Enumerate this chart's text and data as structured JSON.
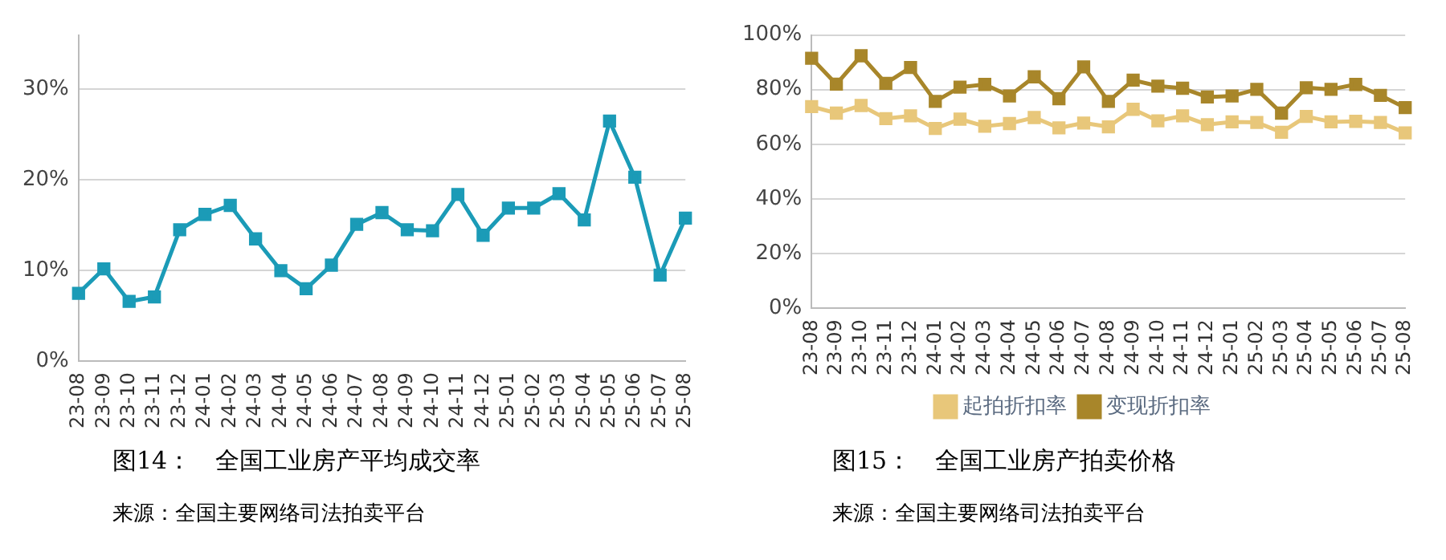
{
  "chart_data": [
    {
      "type": "line",
      "title": "图14：　全国工业房产平均成交率",
      "annotations": [
        "来源：全国主要网络司法拍卖平台"
      ],
      "categories": [
        "23-08",
        "23-09",
        "23-10",
        "23-11",
        "23-12",
        "24-01",
        "24-02",
        "24-03",
        "24-04",
        "24-05",
        "24-06",
        "24-07",
        "24-08",
        "24-09",
        "24-10",
        "24-11",
        "24-12",
        "25-01",
        "25-02",
        "25-03",
        "25-04",
        "25-05",
        "25-06",
        "25-07",
        "25-08"
      ],
      "series": [
        {
          "color": "#1b9bb7",
          "values": [
            7.5,
            10.2,
            6.6,
            7.1,
            14.5,
            16.2,
            17.2,
            13.5,
            10.0,
            8.0,
            10.6,
            15.1,
            16.4,
            14.5,
            14.4,
            18.4,
            13.9,
            16.9,
            16.9,
            18.5,
            15.6,
            26.5,
            20.3,
            9.5,
            15.8
          ]
        }
      ],
      "ylim": [
        0,
        36
      ],
      "yticks": [
        {
          "value": 0,
          "label": "0%"
        },
        {
          "value": 10,
          "label": "10%"
        },
        {
          "value": 20,
          "label": "20%"
        },
        {
          "value": 30,
          "label": "30%"
        }
      ],
      "grid": "y",
      "legend": false,
      "marker": "square",
      "line_style": "solid"
    },
    {
      "type": "line",
      "title": "图15：　全国工业房产拍卖价格",
      "annotations": [
        "来源：全国主要网络司法拍卖平台"
      ],
      "categories": [
        "23-08",
        "23-09",
        "23-10",
        "23-11",
        "23-12",
        "24-01",
        "24-02",
        "24-03",
        "24-04",
        "24-05",
        "24-06",
        "24-07",
        "24-08",
        "24-09",
        "24-10",
        "24-11",
        "24-12",
        "25-01",
        "25-02",
        "25-03",
        "25-04",
        "25-05",
        "25-06",
        "25-07",
        "25-08"
      ],
      "series": [
        {
          "name": "起拍折扣率",
          "color": "#e8c77a",
          "values": [
            73.8,
            71.4,
            74.2,
            69.4,
            70.4,
            65.8,
            69.2,
            66.6,
            67.6,
            69.8,
            66.0,
            67.8,
            66.4,
            72.8,
            68.6,
            70.4,
            67.2,
            68.2,
            68.0,
            64.4,
            70.2,
            68.2,
            68.4,
            68.0,
            64.2
          ]
        },
        {
          "name": "变现折扣率",
          "color": "#a8862a",
          "values": [
            91.5,
            82.0,
            92.4,
            82.3,
            88.1,
            75.7,
            80.9,
            81.9,
            77.7,
            84.7,
            76.7,
            88.3,
            75.7,
            83.5,
            81.3,
            80.5,
            77.3,
            77.7,
            80.1,
            71.4,
            80.7,
            80.1,
            81.9,
            77.9,
            73.4
          ]
        }
      ],
      "ylim": [
        0,
        100
      ],
      "yticks": [
        {
          "value": 0,
          "label": "0%"
        },
        {
          "value": 20,
          "label": "20%"
        },
        {
          "value": 40,
          "label": "40%"
        },
        {
          "value": 60,
          "label": "60%"
        },
        {
          "value": 80,
          "label": "80%"
        },
        {
          "value": 100,
          "label": "100%"
        }
      ],
      "grid": "y",
      "legend": "bottom",
      "marker": "square",
      "line_style": "solid"
    }
  ]
}
